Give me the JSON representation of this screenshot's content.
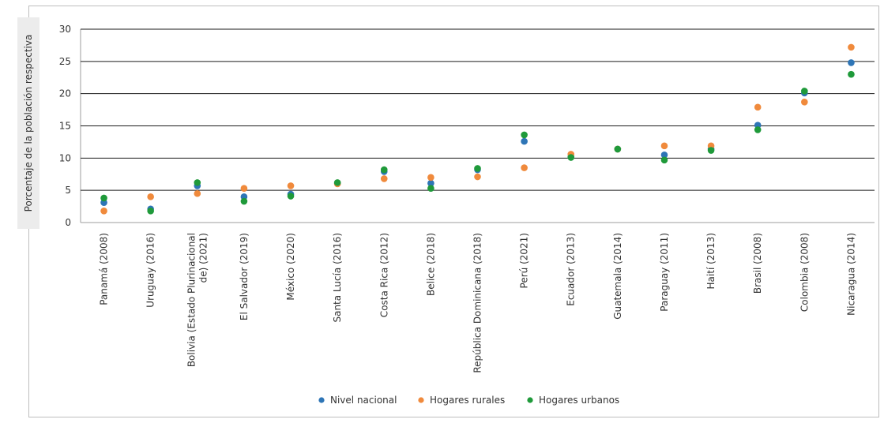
{
  "chart_data": {
    "type": "scatter",
    "ylabel": "Porcentaje de la población respectiva",
    "ylim": [
      0,
      30
    ],
    "yticks": [
      0,
      5,
      10,
      15,
      20,
      25,
      30
    ],
    "grid": true,
    "legend_position": "bottom",
    "categories": [
      [
        "Panamá (2008)"
      ],
      [
        "Uruguay (2016)"
      ],
      [
        "Bolivia (Estado Plurinacional",
        "de) (2021)"
      ],
      [
        "El Salvador (2019)"
      ],
      [
        "México (2020)"
      ],
      [
        "Santa Lucía (2016)"
      ],
      [
        "Costa Rica (2012)"
      ],
      [
        "Belice (2018)"
      ],
      [
        "República Dominicana (2018)"
      ],
      [
        "Perú (2021)"
      ],
      [
        "Ecuador (2013)"
      ],
      [
        "Guatemala (2014)"
      ],
      [
        "Paraguay (2011)"
      ],
      [
        "Haití (2013)"
      ],
      [
        "Brasil (2008)"
      ],
      [
        "Colombia (2008)"
      ],
      [
        "Nicaragua (2014)"
      ]
    ],
    "series": [
      {
        "name": "Nivel nacional",
        "color": "#2e75b6",
        "values": [
          3.1,
          2.1,
          5.7,
          4.0,
          4.4,
          6.1,
          7.9,
          6.1,
          8.2,
          12.6,
          10.2,
          11.4,
          10.5,
          11.4,
          15.1,
          20.1,
          24.8
        ]
      },
      {
        "name": "Hogares rurales",
        "color": "#f08a3c",
        "values": [
          1.8,
          4.0,
          4.5,
          5.3,
          5.7,
          6.0,
          6.8,
          7.0,
          7.1,
          8.5,
          10.6,
          11.4,
          11.9,
          11.9,
          17.9,
          18.7,
          27.2
        ]
      },
      {
        "name": "Hogares urbanos",
        "color": "#1f9a3a",
        "values": [
          3.8,
          1.8,
          6.2,
          3.3,
          4.1,
          6.2,
          8.2,
          5.3,
          8.4,
          13.6,
          10.1,
          11.4,
          9.7,
          11.2,
          14.4,
          20.4,
          23.0
        ]
      }
    ]
  }
}
